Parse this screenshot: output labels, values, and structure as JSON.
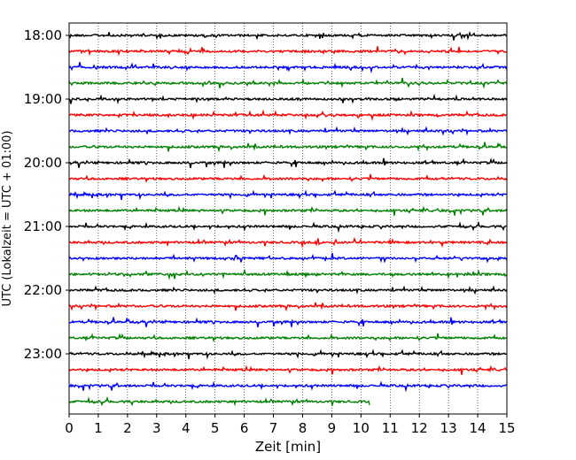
{
  "chart_data": {
    "type": "line",
    "title": "",
    "xlabel": "Zeit  [min]",
    "ylabel": "UTC (Lokalzeit = UTC + 01:00)",
    "xlim": [
      0,
      15
    ],
    "x_ticks": [
      "0",
      "1",
      "2",
      "3",
      "4",
      "5",
      "6",
      "7",
      "8",
      "9",
      "10",
      "11",
      "12",
      "13",
      "14",
      "15"
    ],
    "y_tick_labels": [
      "18:00",
      "19:00",
      "20:00",
      "21:00",
      "22:00",
      "23:00"
    ],
    "grid": "vertical dotted",
    "trace_interval_minutes": 15,
    "trace_colors": [
      "#000000",
      "#ff0000",
      "#0000ff",
      "#008000"
    ],
    "traces": [
      {
        "start": "18:00",
        "color": "#000000",
        "x_end": 15
      },
      {
        "start": "18:15",
        "color": "#ff0000",
        "x_end": 15
      },
      {
        "start": "18:30",
        "color": "#0000ff",
        "x_end": 15
      },
      {
        "start": "18:45",
        "color": "#008000",
        "x_end": 15
      },
      {
        "start": "19:00",
        "color": "#000000",
        "x_end": 15
      },
      {
        "start": "19:15",
        "color": "#ff0000",
        "x_end": 15
      },
      {
        "start": "19:30",
        "color": "#0000ff",
        "x_end": 15
      },
      {
        "start": "19:45",
        "color": "#008000",
        "x_end": 15
      },
      {
        "start": "20:00",
        "color": "#000000",
        "x_end": 15
      },
      {
        "start": "20:15",
        "color": "#ff0000",
        "x_end": 15
      },
      {
        "start": "20:30",
        "color": "#0000ff",
        "x_end": 15
      },
      {
        "start": "20:45",
        "color": "#008000",
        "x_end": 15
      },
      {
        "start": "21:00",
        "color": "#000000",
        "x_end": 15
      },
      {
        "start": "21:15",
        "color": "#ff0000",
        "x_end": 15
      },
      {
        "start": "21:30",
        "color": "#0000ff",
        "x_end": 15
      },
      {
        "start": "21:45",
        "color": "#008000",
        "x_end": 15
      },
      {
        "start": "22:00",
        "color": "#000000",
        "x_end": 15
      },
      {
        "start": "22:15",
        "color": "#ff0000",
        "x_end": 15
      },
      {
        "start": "22:30",
        "color": "#0000ff",
        "x_end": 15
      },
      {
        "start": "22:45",
        "color": "#008000",
        "x_end": 15
      },
      {
        "start": "23:00",
        "color": "#000000",
        "x_end": 15
      },
      {
        "start": "23:15",
        "color": "#ff0000",
        "x_end": 15
      },
      {
        "start": "23:30",
        "color": "#0000ff",
        "x_end": 15
      },
      {
        "start": "23:45",
        "color": "#008000",
        "x_end": 10.3
      }
    ]
  }
}
